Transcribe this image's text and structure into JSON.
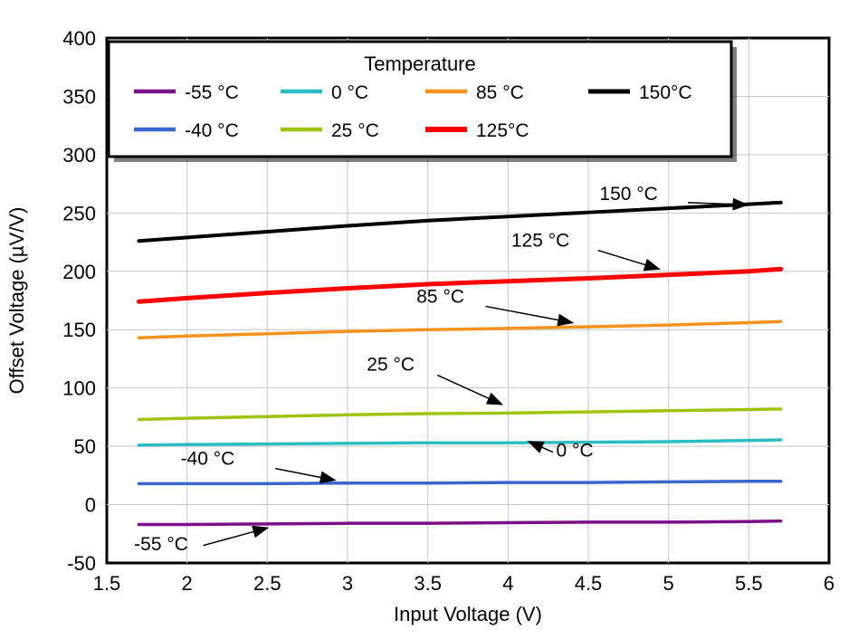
{
  "chart_data": {
    "type": "line",
    "xlabel": "Input Voltage (V)",
    "ylabel": "Offset Voltage (µV/V)",
    "xlim": [
      1.5,
      6
    ],
    "ylim": [
      -50,
      400
    ],
    "xticks": [
      "1.5",
      "2",
      "2.5",
      "3",
      "3.5",
      "4",
      "4.5",
      "5",
      "5.5",
      "6"
    ],
    "xtick_values": [
      1.5,
      2,
      2.5,
      3,
      3.5,
      4,
      4.5,
      5,
      5.5,
      6
    ],
    "yticks": [
      "-50",
      "0",
      "50",
      "100",
      "150",
      "200",
      "250",
      "300",
      "350",
      "400"
    ],
    "ytick_values": [
      -50,
      0,
      50,
      100,
      150,
      200,
      250,
      300,
      350,
      400
    ],
    "grid": true,
    "grid_color": "#C6C6C6",
    "legend_title": "Temperature",
    "legend_position": "top",
    "x": [
      1.7,
      2.0,
      2.5,
      3.0,
      3.5,
      4.0,
      4.5,
      5.0,
      5.5,
      5.7
    ],
    "series": [
      {
        "name": "-55 °C",
        "legend": "-55 °C",
        "color": "#7B0F87",
        "values": [
          -17,
          -17,
          -16.5,
          -16,
          -16,
          -15.5,
          -15,
          -15,
          -14.5,
          -14
        ]
      },
      {
        "name": "-40 °C",
        "legend": "-40 °C",
        "color": "#3A66CC",
        "values": [
          18,
          18,
          18,
          18.5,
          18.5,
          19,
          19,
          19.5,
          20,
          20
        ]
      },
      {
        "name": "0 °C",
        "legend": "0 °C",
        "color": "#2BBCC4",
        "values": [
          51,
          51.5,
          52,
          52.5,
          53,
          53,
          53.5,
          54,
          55,
          55.5
        ]
      },
      {
        "name": "25 °C",
        "legend": "25 °C",
        "color": "#9DC510",
        "values": [
          73,
          74,
          75.5,
          77,
          78,
          78.5,
          79.5,
          80.5,
          81.5,
          82
        ]
      },
      {
        "name": "85 °C",
        "legend": "85 °C",
        "color": "#F6921E",
        "values": [
          143,
          144.5,
          146.5,
          148.5,
          150,
          151,
          152.5,
          154,
          156,
          157
        ]
      },
      {
        "name": "125 °C",
        "legend": "125°C",
        "color": "#FE0000",
        "values": [
          174,
          177,
          181.5,
          185.5,
          189,
          191.5,
          194,
          197,
          200,
          202
        ]
      },
      {
        "name": "150 °C",
        "legend": "150°C",
        "color": "#000000",
        "values": [
          226,
          229,
          234,
          239,
          243.5,
          247,
          250.5,
          254,
          257.5,
          259
        ]
      }
    ],
    "annotations": [
      {
        "text": "-55 °C",
        "x": 1.67,
        "y": -39,
        "line": [
          [
            2.1,
            -35
          ],
          [
            2.5,
            -20
          ]
        ]
      },
      {
        "text": "-40 °C",
        "x": 1.96,
        "y": 34,
        "line": [
          [
            2.55,
            31
          ],
          [
            2.92,
            21
          ]
        ]
      },
      {
        "text": "0 °C",
        "x": 4.3,
        "y": 41,
        "line": [
          [
            4.28,
            45
          ],
          [
            4.13,
            54
          ]
        ]
      },
      {
        "text": "25 °C",
        "x": 3.12,
        "y": 115,
        "line": [
          [
            3.56,
            111
          ],
          [
            3.96,
            86
          ]
        ]
      },
      {
        "text": "85 °C",
        "x": 3.43,
        "y": 173,
        "line": [
          [
            3.86,
            170
          ],
          [
            4.4,
            156
          ]
        ]
      },
      {
        "text": "125 °C",
        "x": 4.02,
        "y": 221,
        "line": [
          [
            4.56,
            218
          ],
          [
            4.94,
            202
          ]
        ]
      },
      {
        "text": "150 °C",
        "x": 4.57,
        "y": 261,
        "line": [
          [
            5.12,
            259
          ],
          [
            5.49,
            257
          ]
        ]
      }
    ]
  }
}
